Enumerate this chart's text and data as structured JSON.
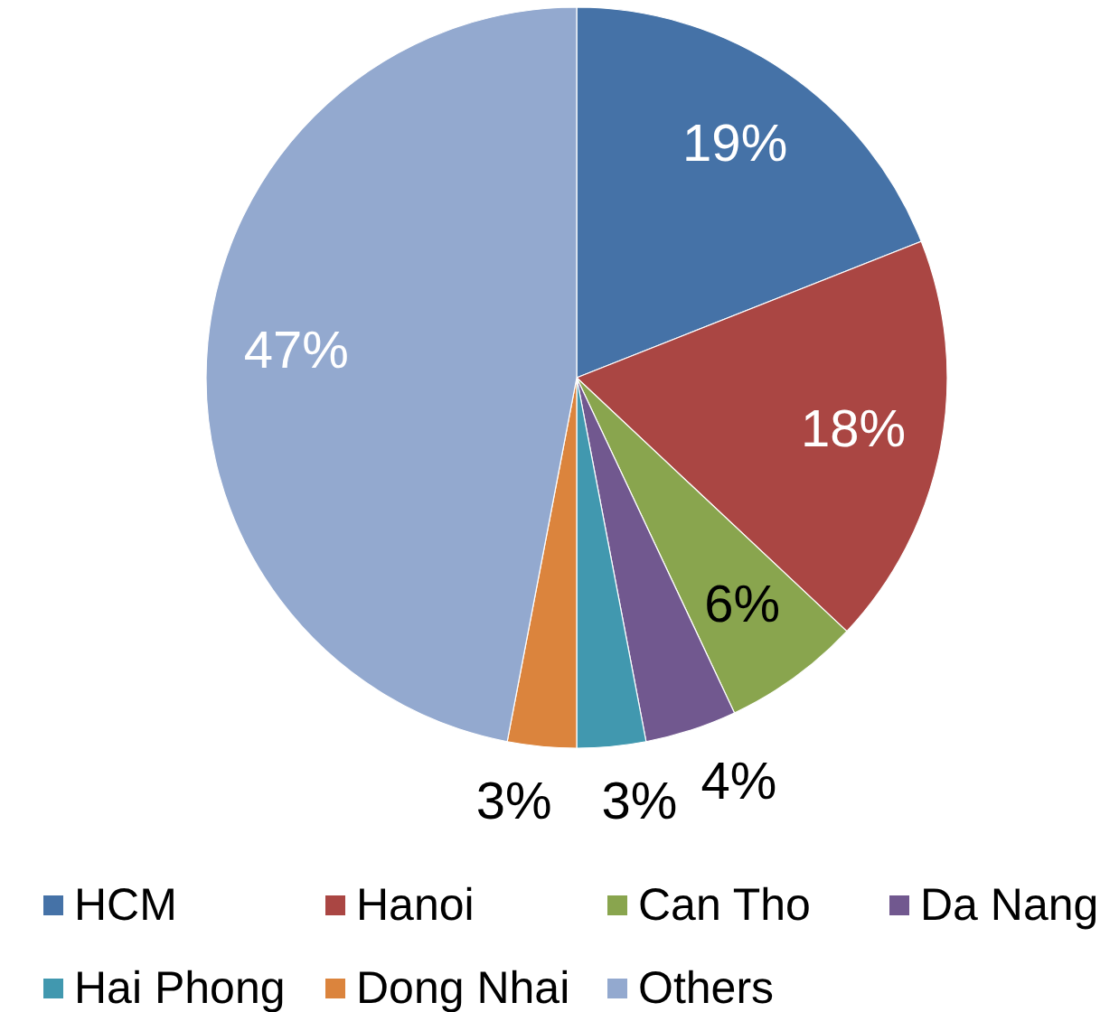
{
  "chart_data": {
    "type": "pie",
    "categories": [
      "HCM",
      "Hanoi",
      "Can Tho",
      "Da Nang",
      "Hai Phong",
      "Dong Nhai",
      "Others"
    ],
    "values": [
      19,
      18,
      6,
      4,
      3,
      3,
      47
    ],
    "colors": [
      "#4572a7",
      "#aa4643",
      "#89a54e",
      "#71588f",
      "#4198af",
      "#db843d",
      "#93a9cf"
    ],
    "value_labels": [
      "19%",
      "18%",
      "6%",
      "4%",
      "3%",
      "3%",
      "47%"
    ],
    "legend": "bottom"
  }
}
